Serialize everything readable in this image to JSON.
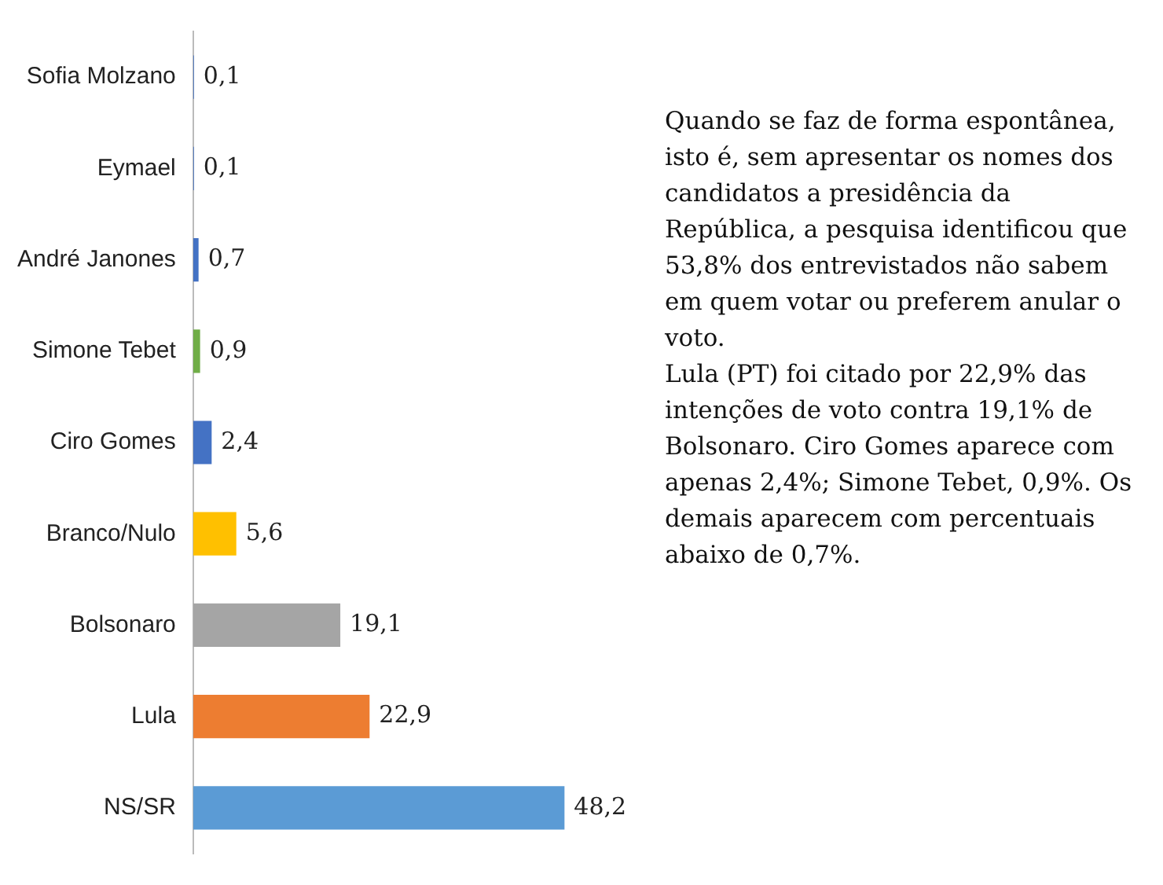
{
  "chart_data": {
    "type": "bar",
    "orientation": "horizontal",
    "categories": [
      "Sofia Molzano",
      "Eymael",
      "André Janones",
      "Simone Tebet",
      "Ciro Gomes",
      "Branco/Nulo",
      "Bolsonaro",
      "Lula",
      "NS/SR"
    ],
    "values": [
      0.1,
      0.1,
      0.7,
      0.9,
      2.4,
      5.6,
      19.1,
      22.9,
      48.2
    ],
    "colors": [
      "#4472c4",
      "#4472c4",
      "#4472c4",
      "#70ad47",
      "#4472c4",
      "#ffc000",
      "#a5a5a5",
      "#ed7d31",
      "#5b9bd5"
    ],
    "value_labels": [
      "0,1",
      "0,1",
      "0,7",
      "0,9",
      "2,4",
      "5,6",
      "19,1",
      "22,9",
      "48,2"
    ],
    "annotations": [
      "Quando se faz de forma espontânea, isto é, sem apresentar os nomes dos candidatos a presidência da República, a pesquisa identificou que 53,8% dos entrevistados não sabem em quem votar ou preferem anular o voto.",
      "Lula (PT) foi citado por 22,9% das intenções de voto contra 19,1% de Bolsonaro. Ciro Gomes aparece com apenas 2,4%; Simone Tebet, 0,9%. Os demais aparecem com percentuais abaixo de 0,7%."
    ],
    "legend": false
  }
}
